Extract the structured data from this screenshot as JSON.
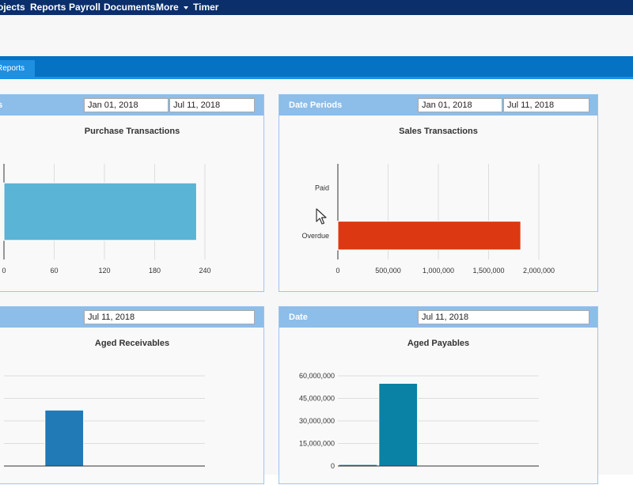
{
  "nav": {
    "items": [
      "ojects",
      "Reports",
      "Payroll",
      "Documents",
      "More",
      "Timer"
    ]
  },
  "tabs": {
    "active_label": "Reports"
  },
  "panels": {
    "purchase": {
      "header_title": "s",
      "date_from": "Jan 01, 2018",
      "date_to": "Jul 11, 2018",
      "chart_title": "Purchase Transactions"
    },
    "sales": {
      "header_title": "Date Periods",
      "date_from": "Jan 01, 2018",
      "date_to": "Jul 11, 2018",
      "chart_title": "Sales Transactions"
    },
    "receivables": {
      "date": "Jul 11, 2018",
      "chart_title": "Aged Receivables"
    },
    "payables": {
      "header_title": "Date",
      "date": "Jul 11, 2018",
      "chart_title": "Aged Payables"
    }
  },
  "chart_data": [
    {
      "id": "purchase",
      "type": "bar",
      "orientation": "horizontal",
      "title": "Purchase Transactions",
      "xlim": [
        0,
        240
      ],
      "xticks": [
        "0",
        "60",
        "120",
        "180",
        "240"
      ],
      "values": [
        230
      ],
      "color": "#5ab4d6"
    },
    {
      "id": "sales",
      "type": "bar",
      "orientation": "horizontal",
      "title": "Sales Transactions",
      "categories": [
        "Paid",
        "Overdue"
      ],
      "values": [
        0,
        1820000
      ],
      "xlim": [
        0,
        2000000
      ],
      "xticks": [
        "0",
        "500,000",
        "1,000,000",
        "1,500,000",
        "2,000,000"
      ],
      "color": "#dc3912"
    },
    {
      "id": "receivables",
      "type": "bar",
      "title": "Aged Receivables",
      "values": [
        0,
        0.62,
        0,
        0,
        0
      ],
      "color": "#2179b5"
    },
    {
      "id": "payables",
      "type": "bar",
      "title": "Aged Payables",
      "values": [
        1000000,
        55000000,
        0,
        0,
        0
      ],
      "ylim": [
        0,
        60000000
      ],
      "yticks": [
        "0",
        "15,000,000",
        "30,000,000",
        "45,000,000",
        "60,000,000"
      ],
      "color": "#0a82a5"
    }
  ]
}
